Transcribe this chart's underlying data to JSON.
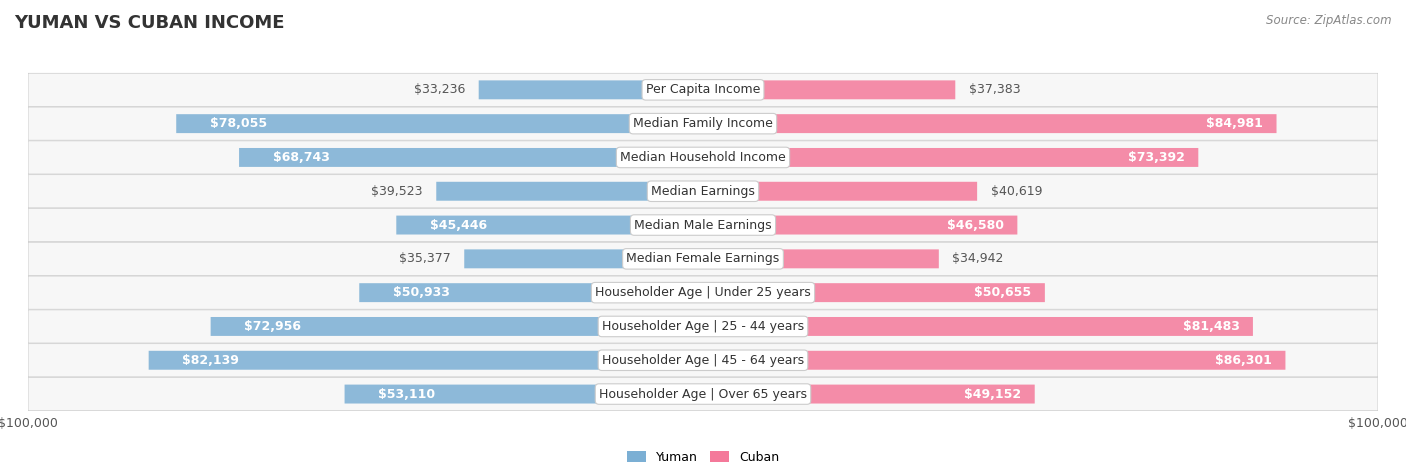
{
  "title": "YUMAN VS CUBAN INCOME",
  "source": "Source: ZipAtlas.com",
  "categories": [
    "Per Capita Income",
    "Median Family Income",
    "Median Household Income",
    "Median Earnings",
    "Median Male Earnings",
    "Median Female Earnings",
    "Householder Age | Under 25 years",
    "Householder Age | 25 - 44 years",
    "Householder Age | 45 - 64 years",
    "Householder Age | Over 65 years"
  ],
  "yuman_values": [
    33236,
    78055,
    68743,
    39523,
    45446,
    35377,
    50933,
    72956,
    82139,
    53110
  ],
  "cuban_values": [
    37383,
    84981,
    73392,
    40619,
    46580,
    34942,
    50655,
    81483,
    86301,
    49152
  ],
  "max_value": 100000,
  "yuman_color": "#7bafd4",
  "cuban_color": "#f4799a",
  "yuman_label": "Yuman",
  "cuban_label": "Cuban",
  "bar_bg_color": "#f0f0f0",
  "row_bg_color": "#f5f5f5",
  "row_bg_alt": "#ffffff",
  "label_box_color": "#ffffff",
  "label_box_edge": "#cccccc",
  "axis_label_color": "#555555",
  "title_color": "#333333",
  "value_fontsize": 9,
  "label_fontsize": 9,
  "title_fontsize": 13
}
